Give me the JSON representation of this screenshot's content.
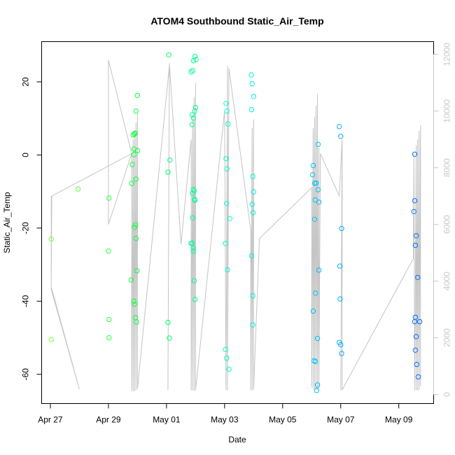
{
  "chart_data": {
    "type": "scatter",
    "title": "ATOM4 Southbound Static_Air_Temp",
    "xlabel": "Date",
    "ylabel": "Static_Air_Temp",
    "x_ticks": [
      "Apr 27",
      "Apr 29",
      "May 01",
      "May 03",
      "May 05",
      "May 07",
      "May 09"
    ],
    "x_tick_days": [
      0,
      2,
      4,
      6,
      8,
      10,
      12
    ],
    "xlim_days": [
      -0.3,
      13.2
    ],
    "ylim": [
      -68,
      31
    ],
    "y_ticks": [
      -60,
      -40,
      -20,
      0,
      20
    ],
    "y2_ticks": [
      0,
      2000,
      4000,
      6000,
      8000,
      10000,
      12000
    ],
    "y2lim": [
      -320,
      12450
    ],
    "point_color_scale": [
      "#7cff3c",
      "#00ff3c",
      "#00ffe0",
      "#00b8ff",
      "#0070ff"
    ],
    "trace_color": "#c4c4c4",
    "grid": false,
    "points": [
      {
        "x": 0.03,
        "y": -23
      },
      {
        "x": 0.03,
        "y": -50.5
      },
      {
        "x": 0.95,
        "y": -9.3
      },
      {
        "x": 2.02,
        "y": -11.8
      },
      {
        "x": 2.0,
        "y": -26.3
      },
      {
        "x": 2.02,
        "y": -45
      },
      {
        "x": 2.02,
        "y": -50
      },
      {
        "x": 2.8,
        "y": -7.8
      },
      {
        "x": 2.78,
        "y": -34.2
      },
      {
        "x": 2.82,
        "y": -2.6
      },
      {
        "x": 2.85,
        "y": 5.5
      },
      {
        "x": 2.88,
        "y": 0.1
      },
      {
        "x": 2.9,
        "y": 5.7
      },
      {
        "x": 2.92,
        "y": 6
      },
      {
        "x": 2.88,
        "y": 1.6
      },
      {
        "x": 2.95,
        "y": -6.6
      },
      {
        "x": 2.9,
        "y": -19.8
      },
      {
        "x": 2.93,
        "y": -19.1
      },
      {
        "x": 2.95,
        "y": -22.8
      },
      {
        "x": 2.98,
        "y": -31.7
      },
      {
        "x": 2.88,
        "y": -40
      },
      {
        "x": 2.9,
        "y": -40.8
      },
      {
        "x": 2.93,
        "y": -44.5
      },
      {
        "x": 2.97,
        "y": -45.7
      },
      {
        "x": 3.0,
        "y": 1.2
      },
      {
        "x": 2.95,
        "y": 12
      },
      {
        "x": 3.0,
        "y": 16.3
      },
      {
        "x": 4.08,
        "y": 27.4
      },
      {
        "x": 4.05,
        "y": -4.7
      },
      {
        "x": 4.12,
        "y": -1.4
      },
      {
        "x": 4.05,
        "y": -45.8
      },
      {
        "x": 4.1,
        "y": -50.1
      },
      {
        "x": 4.85,
        "y": 22.7
      },
      {
        "x": 4.9,
        "y": 23.1
      },
      {
        "x": 4.93,
        "y": 25.8
      },
      {
        "x": 4.98,
        "y": 27
      },
      {
        "x": 5.02,
        "y": 26.1
      },
      {
        "x": 4.88,
        "y": 11
      },
      {
        "x": 4.93,
        "y": 10.1
      },
      {
        "x": 4.97,
        "y": 12
      },
      {
        "x": 5.0,
        "y": 13
      },
      {
        "x": 4.88,
        "y": 8.3
      },
      {
        "x": 4.92,
        "y": -9.4
      },
      {
        "x": 4.95,
        "y": -9.8
      },
      {
        "x": 4.9,
        "y": -10.5
      },
      {
        "x": 4.97,
        "y": -12.1
      },
      {
        "x": 4.98,
        "y": -12.4
      },
      {
        "x": 4.9,
        "y": -17.2
      },
      {
        "x": 4.85,
        "y": -24.2
      },
      {
        "x": 4.88,
        "y": -24.1
      },
      {
        "x": 4.92,
        "y": -25.5
      },
      {
        "x": 4.93,
        "y": -26.3
      },
      {
        "x": 4.95,
        "y": -34.4
      },
      {
        "x": 4.98,
        "y": -39.5
      },
      {
        "x": 6.05,
        "y": 14.1
      },
      {
        "x": 6.08,
        "y": 12
      },
      {
        "x": 6.12,
        "y": 8.5
      },
      {
        "x": 6.05,
        "y": -1
      },
      {
        "x": 6.08,
        "y": -3.8
      },
      {
        "x": 6.07,
        "y": -13.3
      },
      {
        "x": 6.18,
        "y": -17.4
      },
      {
        "x": 6.03,
        "y": -24.2
      },
      {
        "x": 6.1,
        "y": -31.4
      },
      {
        "x": 6.03,
        "y": -53.2
      },
      {
        "x": 6.07,
        "y": -55.6
      },
      {
        "x": 6.15,
        "y": -58.6
      },
      {
        "x": 6.92,
        "y": 21.9
      },
      {
        "x": 6.95,
        "y": 19.5
      },
      {
        "x": 7.0,
        "y": 16
      },
      {
        "x": 6.93,
        "y": 12.4
      },
      {
        "x": 6.97,
        "y": -5.9
      },
      {
        "x": 7.0,
        "y": -10.1
      },
      {
        "x": 6.95,
        "y": -13.5
      },
      {
        "x": 6.98,
        "y": -15.8
      },
      {
        "x": 6.93,
        "y": -27.6
      },
      {
        "x": 6.97,
        "y": -38.5
      },
      {
        "x": 6.97,
        "y": -46.5
      },
      {
        "x": 9.05,
        "y": -2.9
      },
      {
        "x": 9.03,
        "y": -5.4
      },
      {
        "x": 9.1,
        "y": -7.7
      },
      {
        "x": 9.15,
        "y": -7.7
      },
      {
        "x": 9.22,
        "y": -9.5
      },
      {
        "x": 9.25,
        "y": -12.9
      },
      {
        "x": 9.12,
        "y": -12.3
      },
      {
        "x": 9.1,
        "y": -17.6
      },
      {
        "x": 9.22,
        "y": 2.9
      },
      {
        "x": 9.25,
        "y": -31.5
      },
      {
        "x": 9.13,
        "y": -37.8
      },
      {
        "x": 9.05,
        "y": -42.7
      },
      {
        "x": 9.2,
        "y": -50.2
      },
      {
        "x": 9.08,
        "y": -56.3
      },
      {
        "x": 9.13,
        "y": -56.5
      },
      {
        "x": 9.2,
        "y": -62.9
      },
      {
        "x": 9.17,
        "y": -64.4
      },
      {
        "x": 9.95,
        "y": 7.8
      },
      {
        "x": 10.0,
        "y": 5.1
      },
      {
        "x": 10.03,
        "y": -20.1
      },
      {
        "x": 9.97,
        "y": -30.4
      },
      {
        "x": 9.98,
        "y": -39.4
      },
      {
        "x": 9.95,
        "y": -51.3
      },
      {
        "x": 10.0,
        "y": -51.9
      },
      {
        "x": 10.03,
        "y": -54.3
      },
      {
        "x": 12.55,
        "y": 0.2
      },
      {
        "x": 12.55,
        "y": -12.5
      },
      {
        "x": 12.52,
        "y": -15.5
      },
      {
        "x": 12.6,
        "y": -22.1
      },
      {
        "x": 12.57,
        "y": -24.7
      },
      {
        "x": 12.65,
        "y": -33.5
      },
      {
        "x": 12.57,
        "y": -44.4
      },
      {
        "x": 12.55,
        "y": -45.6
      },
      {
        "x": 12.72,
        "y": -45.6
      },
      {
        "x": 12.6,
        "y": -49.7
      },
      {
        "x": 12.57,
        "y": -53.4
      },
      {
        "x": 12.62,
        "y": -57.3
      },
      {
        "x": 12.67,
        "y": -60.7
      }
    ],
    "trace_right_axis": [
      [
        0.03,
        5000
      ],
      [
        0.03,
        7000
      ],
      [
        0.03,
        3700
      ],
      [
        1.0,
        180
      ],
      [
        0.03,
        3800
      ],
      [
        0.05,
        7000
      ],
      [
        2.8,
        8500
      ],
      [
        2.0,
        11800
      ],
      [
        2.0,
        6000
      ],
      [
        2.8,
        8500
      ],
      [
        2.8,
        120
      ],
      [
        2.85,
        9000
      ],
      [
        2.85,
        120
      ],
      [
        2.9,
        9300
      ],
      [
        2.9,
        120
      ],
      [
        2.95,
        9600
      ],
      [
        2.95,
        150
      ],
      [
        3.0,
        9900
      ],
      [
        3.0,
        200
      ],
      [
        4.1,
        11600
      ],
      [
        4.05,
        150
      ],
      [
        4.1,
        11700
      ],
      [
        4.5,
        5300
      ],
      [
        4.85,
        9000
      ],
      [
        4.85,
        150
      ],
      [
        4.9,
        9800
      ],
      [
        4.9,
        150
      ],
      [
        4.95,
        10500
      ],
      [
        4.95,
        130
      ],
      [
        5.0,
        11000
      ],
      [
        5.0,
        150
      ],
      [
        6.0,
        10000
      ],
      [
        6.05,
        160
      ],
      [
        6.1,
        11600
      ],
      [
        6.1,
        150
      ],
      [
        6.15,
        11500
      ],
      [
        6.9,
        5800
      ],
      [
        6.9,
        150
      ],
      [
        6.95,
        9400
      ],
      [
        6.95,
        150
      ],
      [
        7.0,
        9700
      ],
      [
        7.0,
        160
      ],
      [
        7.2,
        5500
      ],
      [
        9.0,
        7300
      ],
      [
        9.0,
        250
      ],
      [
        9.05,
        9400
      ],
      [
        9.05,
        200
      ],
      [
        9.1,
        9800
      ],
      [
        9.1,
        150
      ],
      [
        9.15,
        10200
      ],
      [
        9.15,
        150
      ],
      [
        9.2,
        10600
      ],
      [
        9.2,
        150
      ],
      [
        9.25,
        8700
      ],
      [
        9.25,
        200
      ],
      [
        9.3,
        8500
      ],
      [
        9.95,
        7000
      ],
      [
        10.05,
        9000
      ],
      [
        10.0,
        150
      ],
      [
        10.05,
        9000
      ],
      [
        10.05,
        160
      ],
      [
        12.5,
        4800
      ],
      [
        12.52,
        8500
      ],
      [
        12.55,
        150
      ],
      [
        12.6,
        8800
      ],
      [
        12.6,
        150
      ],
      [
        12.65,
        9000
      ],
      [
        12.65,
        150
      ],
      [
        12.7,
        9300
      ],
      [
        12.7,
        160
      ],
      [
        12.75,
        9500
      ],
      [
        12.75,
        300
      ]
    ]
  }
}
